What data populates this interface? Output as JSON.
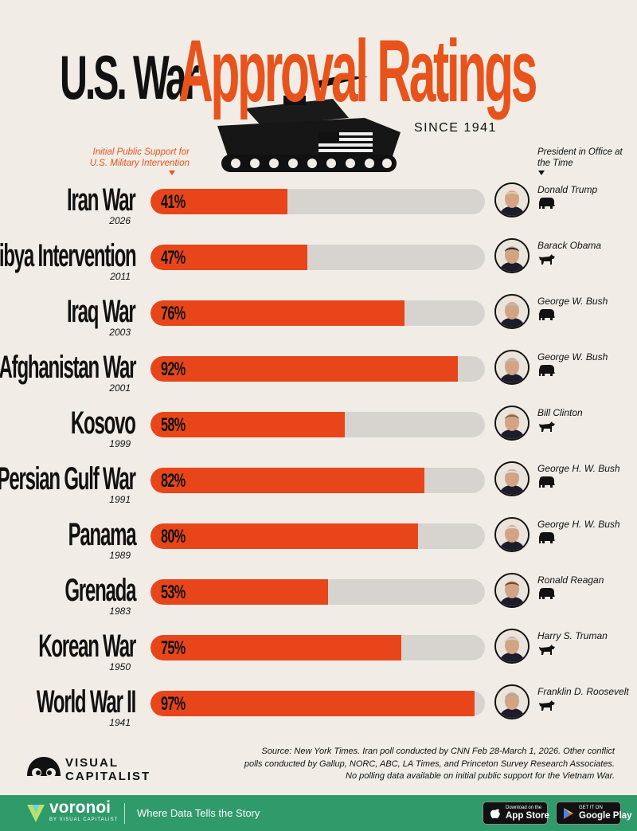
{
  "header": {
    "title_part1": "U.S. War",
    "title_part2": "Approval Ratings",
    "since": "SINCE 1941",
    "left_subtitle": "Initial Public Support for U.S. Military Intervention",
    "right_subtitle": "President in Office at the Time"
  },
  "chart_data": {
    "type": "bar",
    "orientation": "horizontal",
    "categories": [
      "Iran War",
      "Libya Intervention",
      "Iraq War",
      "Afghanistan War",
      "Kosovo",
      "Persian Gulf War",
      "Panama",
      "Grenada",
      "Korean War",
      "World War II"
    ],
    "years": [
      "2026",
      "2011",
      "2003",
      "2001",
      "1999",
      "1991",
      "1989",
      "1983",
      "1950",
      "1941"
    ],
    "values": [
      41,
      47,
      76,
      92,
      58,
      82,
      80,
      53,
      75,
      97
    ],
    "value_labels": [
      "41%",
      "47%",
      "76%",
      "92%",
      "58%",
      "82%",
      "80%",
      "53%",
      "75%",
      "97%"
    ],
    "xlim": [
      0,
      100
    ],
    "presidents": [
      "Donald Trump",
      "Barack Obama",
      "George W. Bush",
      "George W. Bush",
      "Bill Clinton",
      "George H. W. Bush",
      "George H. W. Bush",
      "Ronald Reagan",
      "Harry S. Truman",
      "Franklin D. Roosevelt"
    ],
    "parties": [
      "republican",
      "democrat",
      "republican",
      "republican",
      "democrat",
      "republican",
      "republican",
      "republican",
      "democrat",
      "democrat"
    ],
    "bar_color": "#e8461a",
    "track_color": "#d7d4cf"
  },
  "footer": {
    "logo_line1": "VISUAL",
    "logo_line2": "CAPITALIST",
    "source_line1": "Source: New York Times. Iran poll conducted by CNN Feb 28-March 1, 2026. Other conflict",
    "source_line2": "polls conducted by Gallup, NORC, ABC, LA Times, and Princeton Survey Research Associates.",
    "source_line3": "No polling data available on initial public support for the Vietnam War."
  },
  "bottom_bar": {
    "brand": "voronoi",
    "brand_by": "BY VISUAL CAPITALIST",
    "tagline": "Where Data Tells the Story",
    "appstore_small": "Download on the",
    "appstore_big": "App Store",
    "googleplay_small": "GET IT ON",
    "googleplay_big": "Google Play",
    "color": "#2f9a6a"
  }
}
